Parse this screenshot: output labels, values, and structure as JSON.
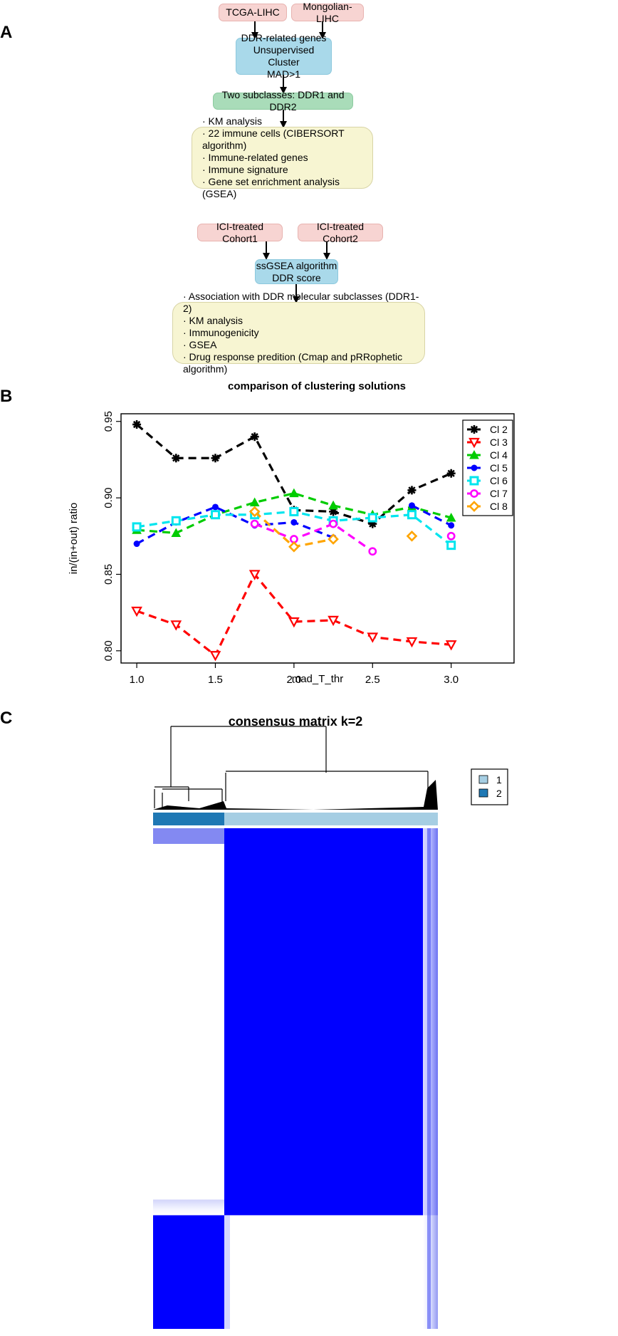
{
  "panels": {
    "a": "A",
    "b": "B",
    "c": "C"
  },
  "flow_top": {
    "source1": "TCGA-LIHC",
    "source2": "Mongolian-LIHC",
    "cluster_lines": [
      "DDR-related genes",
      "Unsupervised Cluster",
      "MAD>1"
    ],
    "subclasses": "Two subclasses: DDR1 and DDR2",
    "analyses": [
      "· KM analysis",
      "· 22 immune cells (CIBERSORT algorithm)",
      "· Immune-related genes",
      "· Immune signature",
      "· Gene set enrichment analysis (GSEA)"
    ]
  },
  "flow_bottom": {
    "source1": "ICI-treated Cohort1",
    "source2": "ICI-treated Cohort2",
    "score_lines": [
      "ssGSEA algorithm",
      "DDR score"
    ],
    "analyses": [
      "· Association with DDR molecular subclasses (DDR1-2)",
      "· KM analysis",
      "· Immunogenicity",
      "· GSEA",
      "· Drug response predition (Cmap and pRRophetic algorithm)"
    ]
  },
  "chart_data": [
    {
      "type": "line",
      "title": "comparison of clustering solutions",
      "xlabel": "mad_T_thr",
      "ylabel": "in/(in+out) ratio",
      "xlim": [
        0.9,
        3.4
      ],
      "ylim": [
        0.792,
        0.955
      ],
      "xticks": [
        "1.0",
        "1.5",
        "2.0",
        "2.5",
        "3.0"
      ],
      "yticks": [
        "0.80",
        "0.85",
        "0.90",
        "0.95"
      ],
      "legend_position": "top-right",
      "x": [
        1.0,
        1.25,
        1.5,
        1.75,
        2.0,
        2.25,
        2.5,
        2.75,
        3.0
      ],
      "series": [
        {
          "name": "Cl 2",
          "color": "#000000",
          "marker": "star",
          "values": [
            0.948,
            0.926,
            0.926,
            0.94,
            0.892,
            0.891,
            0.883,
            0.905,
            0.916
          ]
        },
        {
          "name": "Cl 3",
          "color": "#ff0000",
          "marker": "triangle-down",
          "values": [
            0.826,
            0.817,
            0.797,
            0.85,
            0.819,
            0.82,
            0.809,
            0.806,
            0.804
          ]
        },
        {
          "name": "Cl 4",
          "color": "#00cc00",
          "marker": "triangle-up",
          "values": [
            0.879,
            0.877,
            0.889,
            0.897,
            0.903,
            0.895,
            0.889,
            0.894,
            0.887
          ]
        },
        {
          "name": "Cl 5",
          "color": "#0000ff",
          "marker": "circle",
          "values": [
            0.87,
            0.884,
            0.894,
            0.882,
            0.884,
            0.874,
            null,
            0.895,
            0.882
          ]
        },
        {
          "name": "Cl 6",
          "color": "#00e5ee",
          "marker": "square",
          "values": [
            0.881,
            0.885,
            0.889,
            0.889,
            0.891,
            0.885,
            0.887,
            0.889,
            0.869
          ]
        },
        {
          "name": "Cl 7",
          "color": "#ff00ff",
          "marker": "circle-open",
          "values": [
            null,
            null,
            null,
            0.883,
            0.873,
            0.883,
            0.865,
            null,
            0.875
          ]
        },
        {
          "name": "Cl 8",
          "color": "#ffa500",
          "marker": "diamond",
          "values": [
            null,
            null,
            null,
            0.891,
            0.868,
            0.873,
            null,
            0.875,
            null
          ]
        }
      ]
    },
    {
      "type": "heatmap",
      "title": "consensus matrix k=2",
      "legend": [
        {
          "label": "1",
          "color": "#a6cee3"
        },
        {
          "label": "2",
          "color": "#1f78b4"
        }
      ],
      "cluster_fractions": {
        "cluster2": 0.25,
        "cluster1": 0.75
      },
      "block_color": "#0000ff"
    }
  ]
}
